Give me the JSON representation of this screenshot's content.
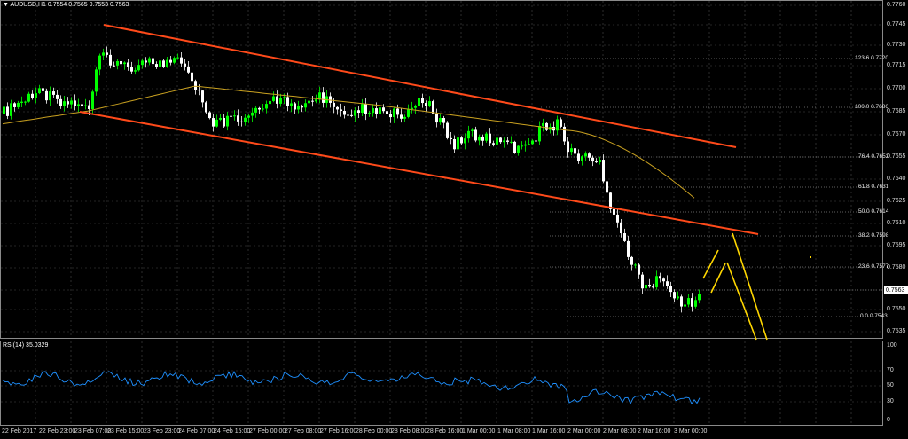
{
  "header": {
    "symbol_line": "AUDUSD,H1  0.7554 0.7565 0.7553 0.7563"
  },
  "rsi": {
    "header": "RSI(14) 35.0329",
    "levels": [
      "100",
      "70",
      "50",
      "30",
      "0"
    ]
  },
  "price_axis": {
    "labels": [
      "0.7760",
      "0.7745",
      "0.7730",
      "0.7715",
      "0.7700",
      "0.7685",
      "0.7670",
      "0.7655",
      "0.7640",
      "0.7625",
      "0.7610",
      "0.7595",
      "0.7580",
      "0.7563",
      "0.7550",
      "0.7535"
    ],
    "current_price": "0.7563"
  },
  "time_axis": {
    "labels": [
      "22 Feb 2017",
      "22 Feb 23:00",
      "23 Feb 07:00",
      "23 Feb 15:00",
      "23 Feb 23:00",
      "24 Feb 07:00",
      "24 Feb 15:00",
      "27 Feb 00:00",
      "27 Feb 08:00",
      "27 Feb 16:00",
      "28 Feb 00:00",
      "28 Feb 08:00",
      "28 Feb 16:00",
      "1 Mar 00:00",
      "1 Mar 08:00",
      "1 Mar 16:00",
      "2 Mar 00:00",
      "2 Mar 08:00",
      "2 Mar 16:00",
      "3 Mar 00:00"
    ]
  },
  "fibonacci": {
    "levels": [
      "123.6 0.7720",
      "100.0 0.7686",
      "76.4 0.7652",
      "61.8 0.7631",
      "50.0 0.7614",
      "38.2 0.7598",
      "23.6 0.7577",
      "0.0 0.7543"
    ]
  },
  "colors": {
    "background": "#000000",
    "bull_candle": "#00ff00",
    "bear_candle": "#ffffff",
    "channel": "#ff4a1a",
    "moving_average": "#c8a020",
    "rsi_line": "#1e90ff",
    "projection": "#ffd700",
    "grid": "#4a4a4a"
  },
  "icons": {
    "symbol_marker": "triangle-down-icon"
  }
}
